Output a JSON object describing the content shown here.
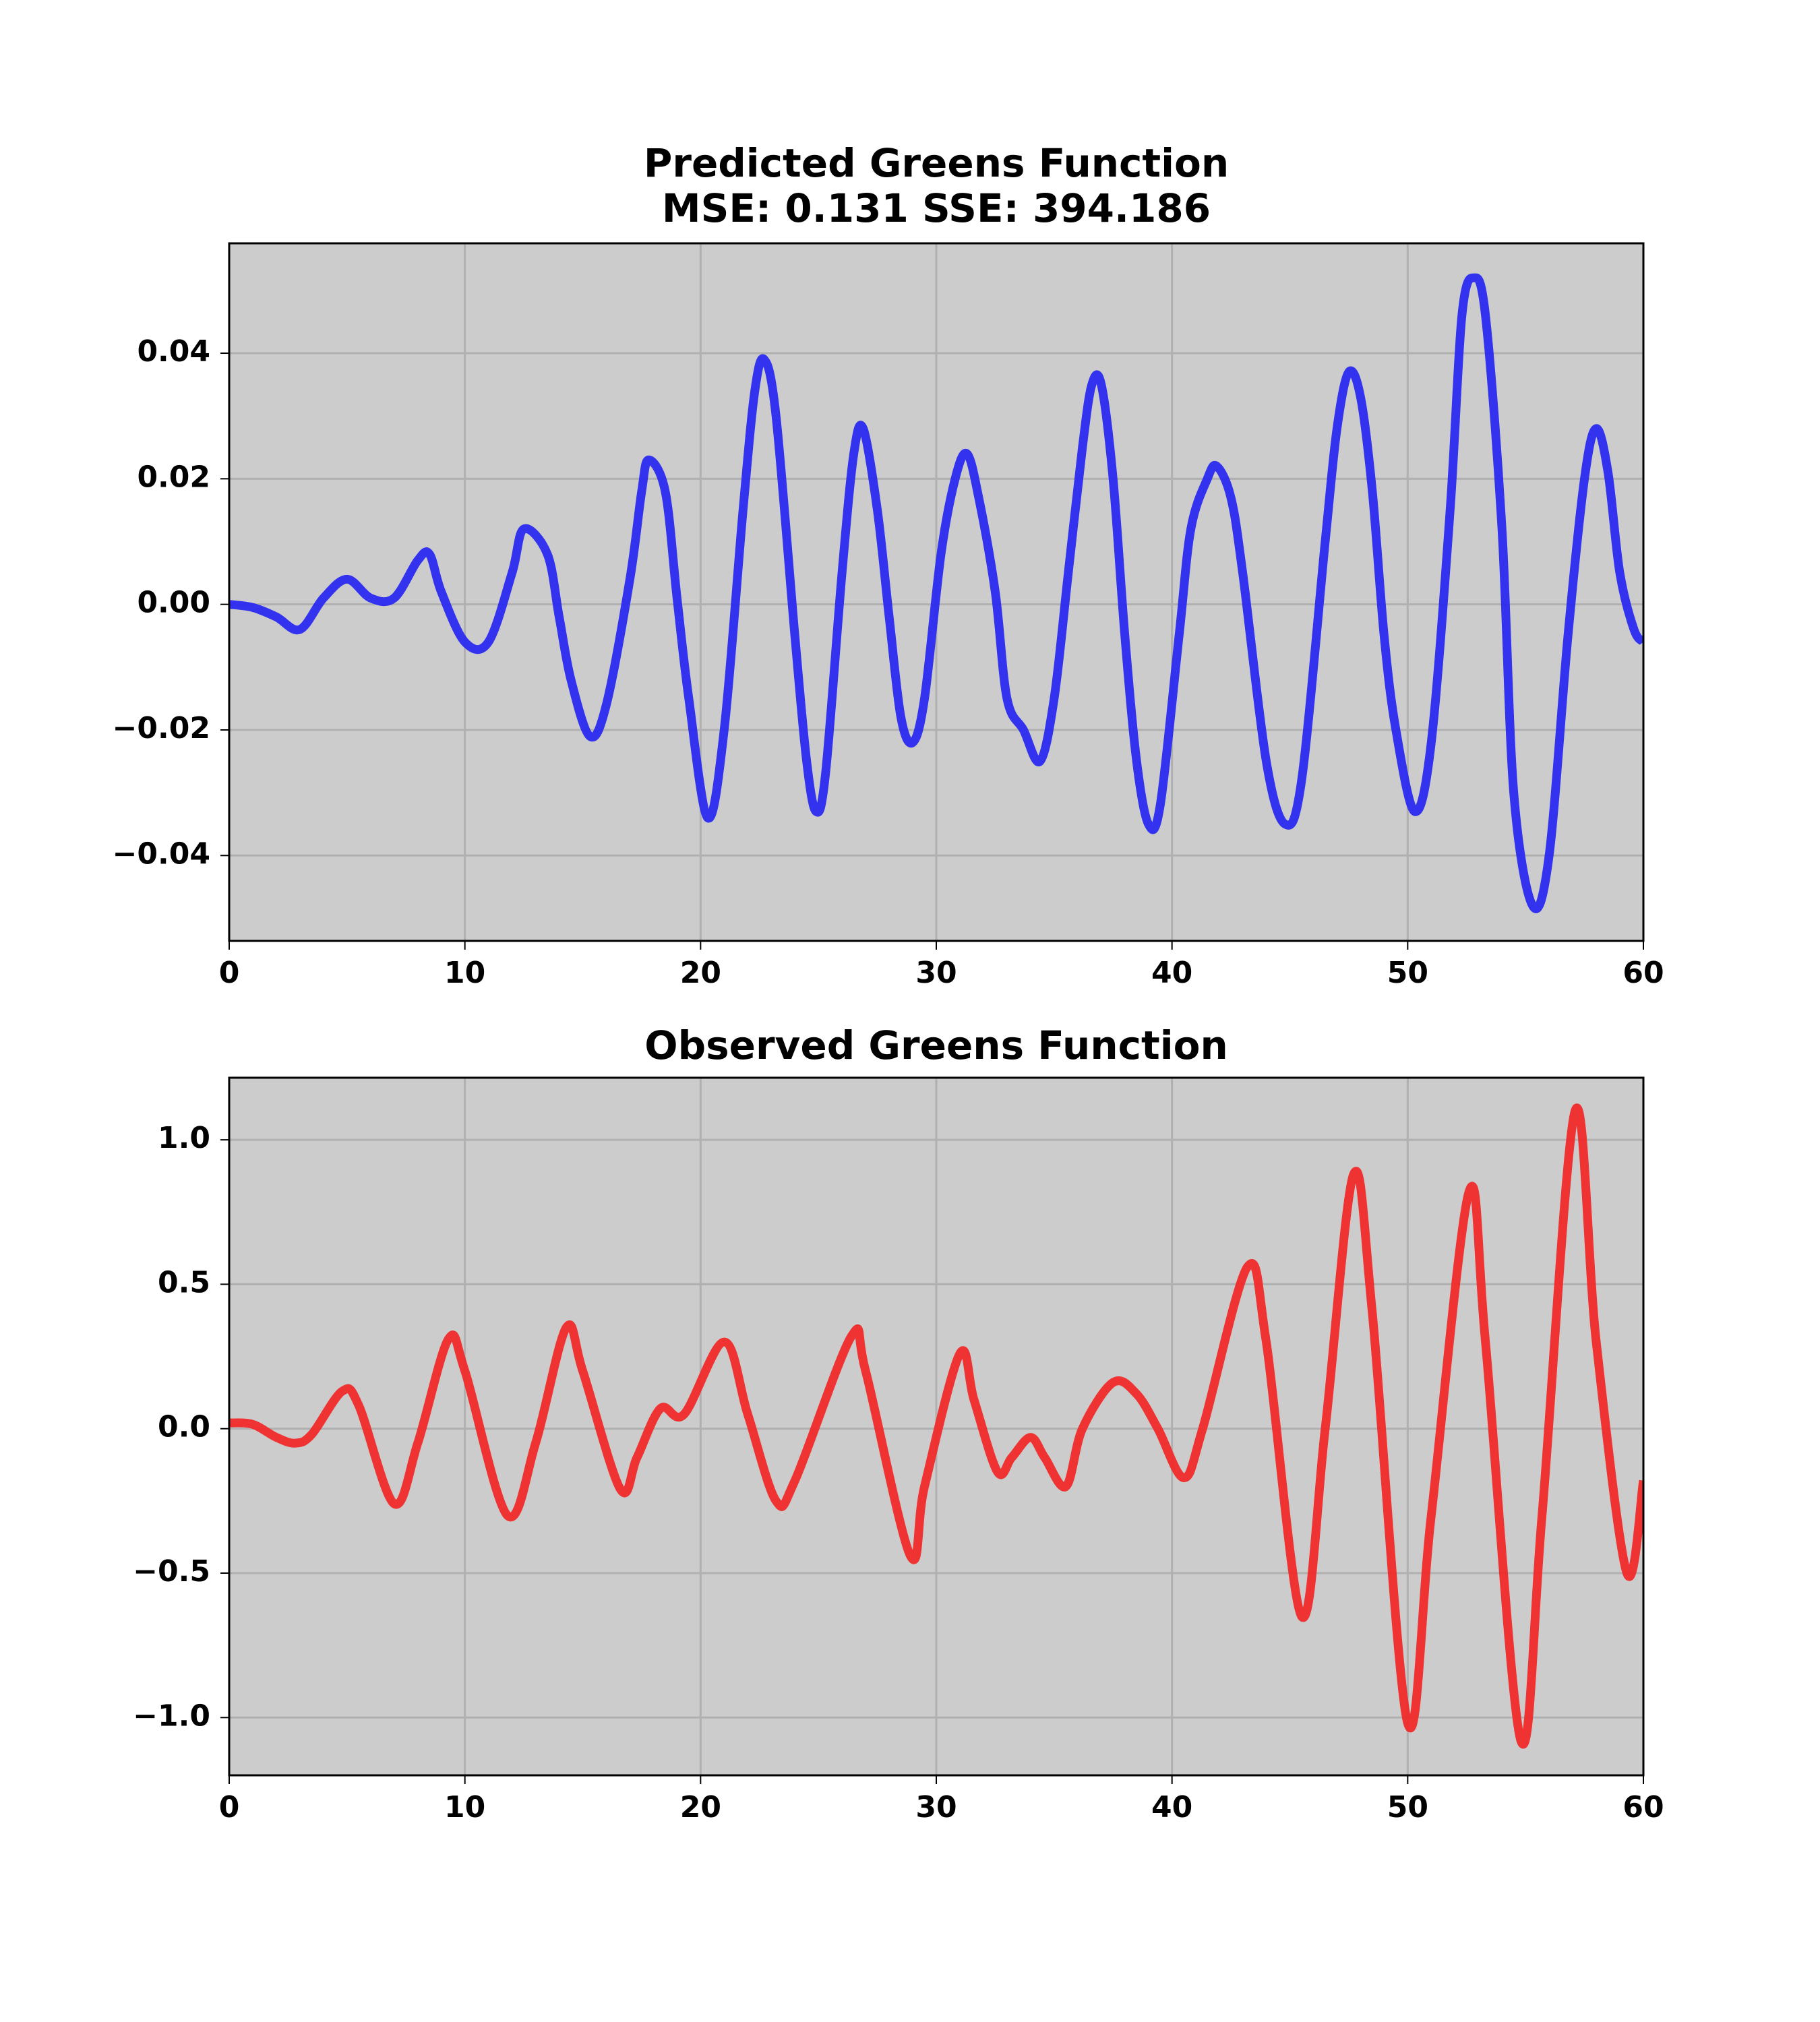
{
  "chart_data": [
    {
      "type": "line",
      "title": "Predicted Greens Function",
      "subtitle": "MSE: 0.131 SSE: 394.186",
      "x": [
        0,
        1,
        2,
        3,
        4,
        5,
        6,
        7,
        8,
        8.5,
        9,
        10,
        11,
        12,
        12.5,
        13.5,
        14,
        14.5,
        15.3,
        16,
        17,
        17.5,
        17.8,
        18.5,
        19,
        19.5,
        20.3,
        21,
        21.8,
        22.3,
        22.7,
        23.2,
        24,
        24.5,
        24.9,
        25.3,
        26,
        26.5,
        26.9,
        27.5,
        28,
        28.5,
        29,
        29.5,
        30.2,
        30.8,
        31.3,
        31.8,
        32.5,
        33,
        33.7,
        34.4,
        35,
        35.6,
        36.2,
        36.6,
        37,
        37.5,
        38,
        38.5,
        39,
        39.5,
        40.3,
        40.8,
        41.5,
        41.9,
        42.5,
        43,
        44,
        44.8,
        45.5,
        46.5,
        47,
        47.5,
        48,
        48.5,
        49,
        49.5,
        50.3,
        51,
        51.8,
        52.3,
        52.8,
        53.3,
        54,
        54.5,
        55.3,
        56,
        56.8,
        57.5,
        58,
        58.5,
        59,
        59.6,
        60
      ],
      "series": [
        {
          "color": "#2a2af0",
          "values": [
            0,
            -0.0005,
            -0.002,
            -0.004,
            0.001,
            0.004,
            0.001,
            0.001,
            0.007,
            0.008,
            0.002,
            -0.006,
            -0.006,
            0.005,
            0.012,
            0.008,
            -0.002,
            -0.012,
            -0.021,
            -0.016,
            0.004,
            0.018,
            0.023,
            0.018,
            0.001,
            -0.015,
            -0.034,
            -0.02,
            0.015,
            0.034,
            0.039,
            0.03,
            -0.005,
            -0.025,
            -0.033,
            -0.027,
            0.005,
            0.024,
            0.028,
            0.015,
            -0.002,
            -0.018,
            -0.022,
            -0.015,
            0.008,
            0.02,
            0.024,
            0.017,
            0.002,
            -0.015,
            -0.02,
            -0.025,
            -0.015,
            0.005,
            0.025,
            0.035,
            0.035,
            0.02,
            -0.005,
            -0.025,
            -0.035,
            -0.032,
            -0.005,
            0.012,
            0.02,
            0.022,
            0.017,
            0.005,
            -0.025,
            -0.035,
            -0.028,
            0.01,
            0.028,
            0.037,
            0.033,
            0.018,
            -0.005,
            -0.02,
            -0.033,
            -0.022,
            0.015,
            0.046,
            0.052,
            0.046,
            0.012,
            -0.03,
            -0.048,
            -0.04,
            -0.005,
            0.02,
            0.028,
            0.021,
            0.005,
            -0.004,
            -0.006
          ]
        }
      ],
      "xlim": [
        0,
        60
      ],
      "xticks": [
        0,
        10,
        20,
        30,
        40,
        50,
        60
      ],
      "ylim": [
        -0.0536,
        0.0575
      ],
      "yticks": [
        {
          "value": -0.04,
          "label": "−0.04"
        },
        {
          "value": -0.02,
          "label": "−0.02"
        },
        {
          "value": 0,
          "label": "0.00"
        },
        0.02,
        0.04
      ],
      "grid": true
    },
    {
      "type": "line",
      "title": "Observed Greens Function",
      "x": [
        0,
        1,
        2,
        2.8,
        3.5,
        4.8,
        5.5,
        7,
        8,
        9.3,
        10,
        11.8,
        13,
        14.3,
        15,
        16.6,
        17.3,
        18.3,
        19.3,
        21,
        22,
        23.2,
        24,
        26.4,
        27,
        28.9,
        29.5,
        31,
        31.6,
        32.6,
        33.2,
        34,
        34.6,
        35.5,
        36.2,
        37.5,
        38.5,
        39.4,
        40.5,
        41.3,
        43.2,
        44,
        45.5,
        46.5,
        47.7,
        48.5,
        50,
        51,
        52.6,
        53.3,
        54.8,
        55.7,
        57.1,
        58,
        59.3,
        60
      ],
      "series": [
        {
          "color": "#f02a2a",
          "values": [
            0.02,
            0.015,
            -0.03,
            -0.05,
            -0.02,
            0.13,
            0.08,
            -0.26,
            -0.05,
            0.31,
            0.2,
            -0.3,
            -0.05,
            0.35,
            0.2,
            -0.21,
            -0.1,
            0.07,
            0.05,
            0.3,
            0.05,
            -0.25,
            -0.18,
            0.32,
            0.2,
            -0.44,
            -0.2,
            0.26,
            0.1,
            -0.15,
            -0.1,
            -0.03,
            -0.1,
            -0.2,
            0,
            0.16,
            0.12,
            0,
            -0.17,
            0,
            0.56,
            0.3,
            -0.65,
            0,
            0.88,
            0.4,
            -1.02,
            -0.3,
            0.82,
            0.3,
            -1.08,
            -0.3,
            1.1,
            0.3,
            -0.5,
            -0.18
          ]
        }
      ],
      "xlim": [
        0,
        60
      ],
      "xticks": [
        0,
        10,
        20,
        30,
        40,
        50,
        60
      ],
      "ylim": [
        -1.2,
        1.215
      ],
      "yticks": [
        {
          "value": -1,
          "label": "−1.0"
        },
        {
          "value": -0.5,
          "label": "−0.5"
        },
        {
          "value": 0,
          "label": "0.0"
        },
        0.5,
        {
          "value": 1,
          "label": "1.0"
        }
      ],
      "grid": true
    }
  ]
}
